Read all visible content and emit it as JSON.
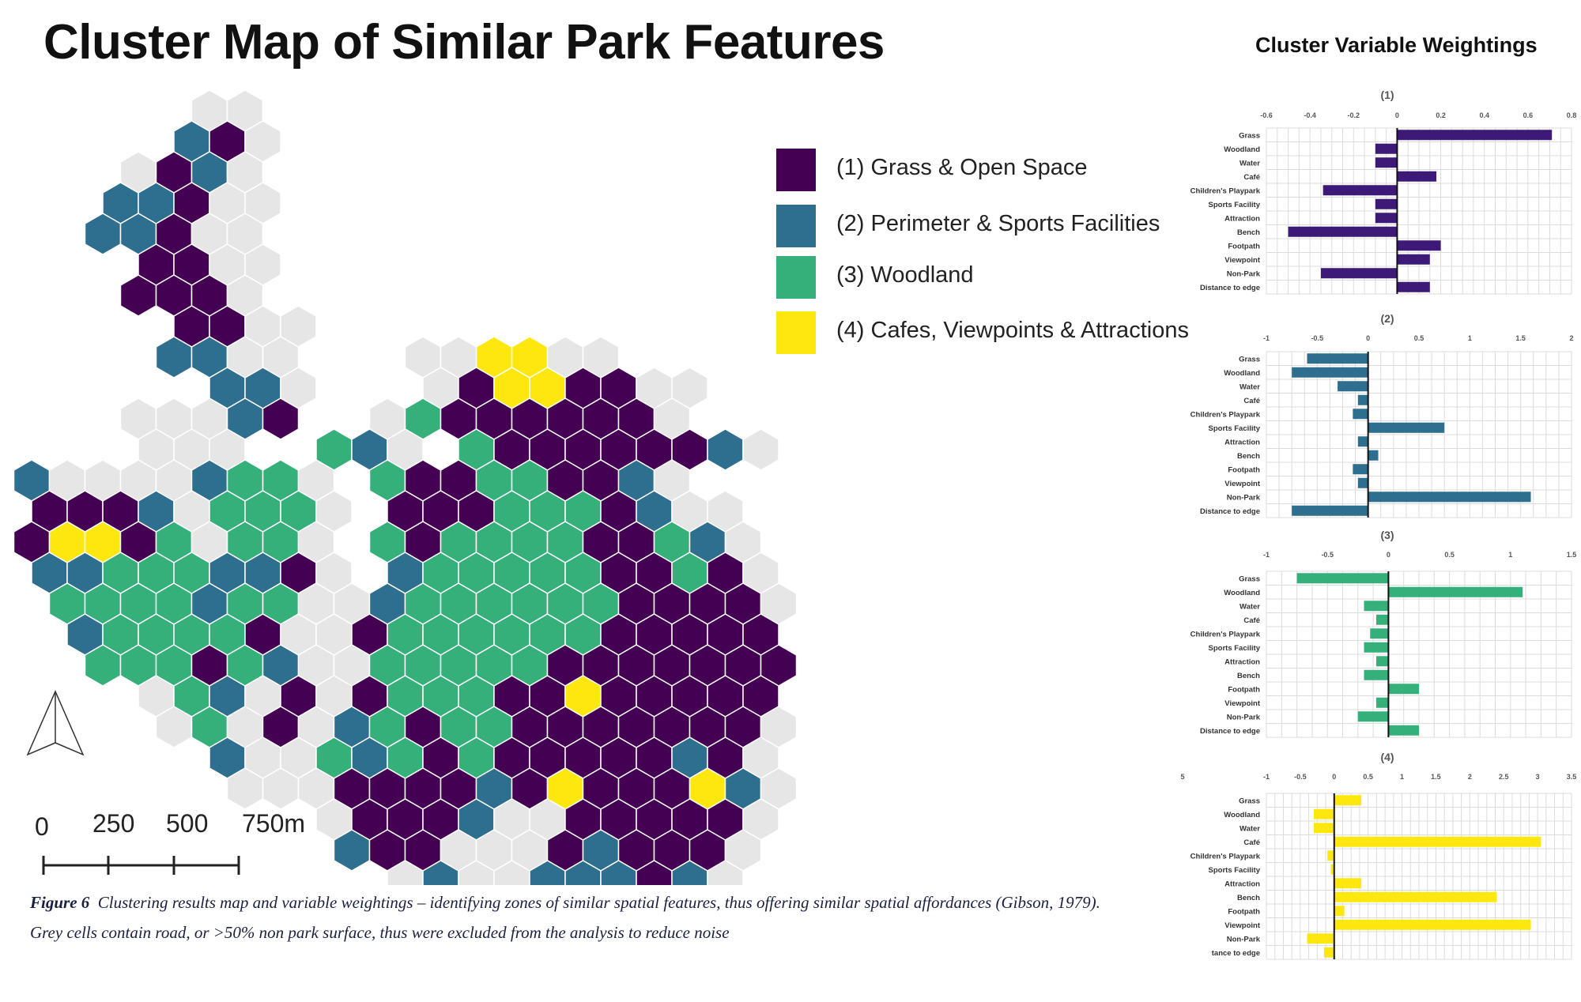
{
  "title": "Cluster Map of Similar Park Features",
  "weights_title": "Cluster Variable Weightings",
  "legend": [
    {
      "label": "(1) Grass & Open Space",
      "color": "#440154"
    },
    {
      "label": "(2) Perimeter & Sports Facilities",
      "color": "#2e6e8e"
    },
    {
      "label": "(3) Woodland",
      "color": "#35b07a"
    },
    {
      "label": "(4) Cafes, Viewpoints & Attractions",
      "color": "#fde70e"
    }
  ],
  "excluded_color": "#e6e6e6",
  "scale_bar": {
    "labels": [
      "0",
      "250",
      "500",
      "750m"
    ]
  },
  "north_arrow": "north-arrow-icon",
  "caption": {
    "figure_label": "Figure 6",
    "line1": "Clustering results map and variable weightings  – identifying zones of similar spatial features, thus offering similar spatial affordances (Gibson, 1979).",
    "line2": "Grey cells contain road, or >50% non park surface, thus were excluded from the analysis to reduce noise"
  },
  "chart_data": [
    {
      "type": "bar",
      "orientation": "horizontal",
      "title": "(1)",
      "color": "#3d1a78",
      "categories": [
        "Grass",
        "Woodland",
        "Water",
        "Café",
        "Children's Playpark",
        "Sports Facility",
        "Attraction",
        "Bench",
        "Footpath",
        "Viewpoint",
        "Non-Park",
        "Distance to edge"
      ],
      "values": [
        0.71,
        -0.1,
        -0.1,
        0.18,
        -0.34,
        -0.1,
        -0.1,
        -0.5,
        0.2,
        0.15,
        -0.35,
        0.15
      ],
      "xlim": [
        -0.6,
        0.8
      ],
      "ticks": [
        -0.6,
        -0.4,
        -0.2,
        0,
        0.2,
        0.4,
        0.6,
        0.8
      ],
      "tick_labels": [
        "-0.6",
        "-0.4",
        "-0.2",
        "0",
        "0.2",
        "0.4",
        "0.6",
        "0.8"
      ],
      "grid": true
    },
    {
      "type": "bar",
      "orientation": "horizontal",
      "title": "(2)",
      "color": "#2e6e8e",
      "categories": [
        "Grass",
        "Woodland",
        "Water",
        "Café",
        "Children's Playpark",
        "Sports Facility",
        "Attraction",
        "Bench",
        "Footpath",
        "Viewpoint",
        "Non-Park",
        "Distance to edge"
      ],
      "values": [
        -0.6,
        -0.75,
        -0.3,
        -0.1,
        -0.15,
        0.75,
        -0.1,
        0.1,
        -0.15,
        -0.1,
        1.6,
        -0.75
      ],
      "xlim": [
        -1,
        2
      ],
      "ticks": [
        -1,
        -0.5,
        0,
        0.5,
        1,
        1.5,
        2
      ],
      "tick_labels": [
        "-1",
        "-0.5",
        "0",
        "0.5",
        "1",
        "1.5",
        "2"
      ],
      "grid": true
    },
    {
      "type": "bar",
      "orientation": "horizontal",
      "title": "(3)",
      "color": "#35b07a",
      "categories": [
        "Grass",
        "Woodland",
        "Water",
        "Café",
        "Children's Playpark",
        "Sports Facility",
        "Attraction",
        "Bench",
        "Footpath",
        "Viewpoint",
        "Non-Park",
        "Distance to edge"
      ],
      "values": [
        -0.75,
        1.1,
        -0.2,
        -0.1,
        -0.15,
        -0.2,
        -0.1,
        -0.2,
        0.25,
        -0.1,
        -0.25,
        0.25
      ],
      "xlim": [
        -1,
        1.5
      ],
      "ticks": [
        -1,
        -0.5,
        0,
        0.5,
        1,
        1.5
      ],
      "tick_labels": [
        "-1",
        "-0.5",
        "0",
        "0.5",
        "1",
        "1.5"
      ],
      "grid": true
    },
    {
      "type": "bar",
      "orientation": "horizontal",
      "title": "(4)",
      "color": "#fde70e",
      "categories": [
        "Grass",
        "Woodland",
        "Water",
        "Café",
        "Children's Playpark",
        "Sports Facility",
        "Attraction",
        "Bench",
        "Footpath",
        "Viewpoint",
        "Non-Park",
        "tance to edge"
      ],
      "values": [
        0.4,
        -0.3,
        -0.3,
        3.05,
        -0.1,
        -0.05,
        0.4,
        2.4,
        0.15,
        2.9,
        -0.4,
        -0.15
      ],
      "xlim": [
        -1,
        3.5
      ],
      "ticks": [
        -1,
        -0.5,
        0,
        0.5,
        1,
        1.5,
        2,
        2.5,
        3,
        3.5
      ],
      "tick_labels": [
        "-1",
        "-0.5",
        "0",
        "0.5",
        "1",
        "1.5",
        "2",
        "2.5",
        "3",
        "3.5"
      ],
      "partial_left_tick_label": "5",
      "grid": true
    }
  ]
}
